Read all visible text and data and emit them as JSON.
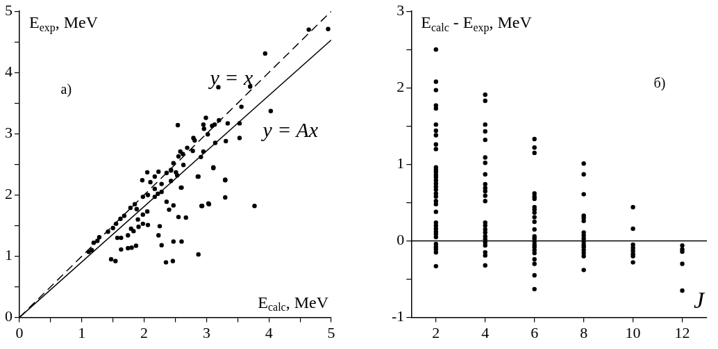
{
  "chart_data": [
    {
      "type": "scatter",
      "xlabel": "E$_{calc}$, MeV",
      "ylabel": "E$_{exp}$, MeV",
      "xlim": [
        0,
        5
      ],
      "ylim": [
        0,
        5
      ],
      "xticks": [
        0,
        {
          "value": 0.5,
          "label": null
        },
        1,
        {
          "value": 1.5,
          "label": null
        },
        2,
        {
          "value": 2.5,
          "label": null
        },
        3,
        {
          "value": 3.5,
          "label": null
        },
        4,
        {
          "value": 4.5,
          "label": null
        },
        5
      ],
      "yticks": [
        0,
        {
          "value": 0.5,
          "label": null
        },
        1,
        {
          "value": 1.5,
          "label": null
        },
        2,
        {
          "value": 2.5,
          "label": null
        },
        3,
        {
          "value": 3.5,
          "label": null
        },
        4,
        {
          "value": 4.5,
          "label": null
        },
        5
      ],
      "grid": false,
      "legend": false,
      "series": [
        {
          "marker": "circle",
          "color": "#000000",
          "x": [
            1.47,
            1.54,
            2.35,
            2.46,
            2.87,
            1.63,
            1.74,
            1.8,
            1.87,
            1.57,
            1.63,
            1.74,
            2.23,
            2.28,
            2.47,
            2.6,
            2.25,
            1.79,
            1.83,
            1.91,
            1.98,
            2.06,
            1.9,
            1.98,
            2.05,
            2.36,
            2.4,
            2.47,
            2.55,
            2.67,
            2.92,
            3.04,
            3.3,
            2.87,
            3.11,
            3.3,
            2.6,
            1.11,
            1.16,
            1.19,
            1.25,
            1.28,
            1.42,
            1.5,
            1.55,
            1.62,
            1.68,
            1.78,
            1.85,
            1.88,
            1.98,
            2.06,
            2.17,
            2.22,
            2.28,
            2.17,
            2.28,
            2.17,
            2.1,
            1.97,
            2.05,
            2.23,
            2.36,
            2.43,
            2.51,
            2.43,
            2.53,
            2.63,
            4.64,
            4.95,
            3.94,
            3.19,
            3.7,
            3.56,
            4.03,
            2.99,
            3.2,
            3.34,
            3.53,
            2.54,
            2.95,
            2.96,
            3.02,
            3.09,
            3.13,
            2.79,
            2.81,
            3.31,
            3.53,
            3.14,
            2.78,
            2.69,
            2.62,
            2.91,
            2.95,
            3.11,
            2.86,
            3.3,
            2.59,
            3.77,
            3.03,
            2.93,
            2.47,
            2.55,
            2.58,
            2.43
          ],
          "values": [
            0.95,
            0.92,
            0.9,
            0.92,
            1.03,
            1.11,
            1.13,
            1.14,
            1.17,
            1.3,
            1.3,
            1.34,
            1.34,
            1.18,
            1.24,
            1.24,
            1.49,
            1.45,
            1.41,
            1.48,
            1.53,
            1.51,
            1.6,
            1.68,
            1.73,
            1.89,
            1.76,
            1.83,
            1.64,
            1.63,
            1.82,
            1.85,
            1.96,
            2.3,
            2.45,
            2.24,
            2.12,
            1.07,
            1.1,
            1.22,
            1.25,
            1.31,
            1.4,
            1.46,
            1.53,
            1.61,
            1.66,
            1.79,
            1.85,
            1.77,
            1.97,
            2.0,
            1.97,
            2.02,
            2.05,
            2.1,
            2.18,
            2.3,
            2.21,
            2.24,
            2.37,
            2.38,
            2.36,
            2.4,
            2.37,
            2.23,
            2.32,
            2.49,
            4.7,
            4.71,
            4.31,
            3.76,
            3.77,
            3.44,
            3.37,
            3.26,
            3.22,
            3.17,
            3.17,
            3.14,
            3.15,
            3.08,
            2.99,
            3.13,
            3.15,
            2.93,
            2.89,
            2.88,
            2.93,
            2.85,
            2.72,
            2.77,
            2.67,
            2.62,
            2.71,
            2.44,
            2.3,
            2.25,
            2.12,
            1.82,
            1.86,
            1.82,
            2.52,
            2.63,
            2.71,
            2.41
          ]
        },
        {
          "type": "line",
          "marker": "none",
          "color": "#000000",
          "line_style": "dashed",
          "x": [
            0,
            5
          ],
          "values": [
            0,
            5
          ]
        },
        {
          "type": "line",
          "marker": "none",
          "color": "#000000",
          "line_style": "solid",
          "x": [
            0,
            5
          ],
          "values": [
            0,
            4.53
          ]
        }
      ],
      "annotations": [
        "y = x",
        "y = Ax",
        "а)"
      ]
    },
    {
      "type": "scatter",
      "xlabel": "J",
      "ylabel": "E$_{calc}$ - E$_{exp}$, MeV",
      "xlim": [
        1,
        13
      ],
      "ylim": [
        -1,
        3
      ],
      "xticks": [
        2,
        4,
        6,
        8,
        10,
        12
      ],
      "yticks": [
        -1,
        {
          "value": -0.5,
          "label": null
        },
        0,
        {
          "value": 0.5,
          "label": null
        },
        1,
        {
          "value": 1.5,
          "label": null
        },
        2,
        {
          "value": 2.5,
          "label": null
        },
        3
      ],
      "grid": false,
      "legend": false,
      "ref_lines": [
        {
          "axis": "y",
          "value": 0,
          "color": "#000000"
        }
      ],
      "series": [
        {
          "marker": "circle",
          "color": "#000000",
          "x": [
            2,
            2,
            2,
            2,
            2,
            2,
            2,
            2,
            2,
            2,
            2,
            2,
            2,
            2,
            2,
            2,
            2,
            2,
            2,
            2,
            2,
            2,
            2,
            2,
            2,
            2,
            2,
            2,
            2,
            2,
            2,
            2,
            2,
            2,
            2,
            4,
            4,
            4,
            4,
            4,
            4,
            4,
            4,
            4,
            4,
            4,
            4,
            4,
            4,
            4,
            4,
            4,
            4,
            4,
            4,
            4,
            4,
            4,
            4,
            6,
            6,
            6,
            6,
            6,
            6,
            6,
            6,
            6,
            6,
            6,
            6,
            6,
            6,
            6,
            6,
            6,
            6,
            6,
            6,
            6,
            6,
            6,
            8,
            8,
            8,
            8,
            8,
            8,
            8,
            8,
            8,
            8,
            8,
            8,
            8,
            8,
            8,
            8,
            10,
            10,
            10,
            10,
            10,
            10,
            10,
            10,
            12,
            12,
            12,
            12,
            12
          ],
          "values": [
            2.5,
            2.08,
            1.97,
            1.77,
            1.73,
            1.52,
            1.44,
            1.38,
            1.26,
            1.2,
            0.96,
            0.93,
            0.9,
            0.86,
            0.83,
            0.79,
            0.75,
            0.71,
            0.67,
            0.62,
            0.58,
            0.52,
            0.48,
            0.38,
            0.24,
            0.2,
            0.16,
            0.12,
            0.09,
            0.05,
            -0.04,
            -0.08,
            -0.11,
            -0.15,
            -0.33,
            1.91,
            1.83,
            1.52,
            1.43,
            1.32,
            1.09,
            1.02,
            0.87,
            0.74,
            0.69,
            0.65,
            0.59,
            0.52,
            0.24,
            0.2,
            0.15,
            0.11,
            0.06,
            0.02,
            -0.02,
            -0.06,
            -0.15,
            -0.19,
            -0.32,
            1.33,
            1.22,
            1.15,
            0.62,
            0.58,
            0.55,
            0.44,
            0.41,
            0.37,
            0.31,
            0.25,
            0.15,
            0.06,
            0.03,
            -0.01,
            -0.05,
            -0.08,
            -0.12,
            -0.16,
            -0.24,
            -0.3,
            -0.45,
            -0.63,
            1.01,
            0.87,
            0.61,
            0.33,
            0.3,
            0.26,
            0.11,
            0.07,
            0.03,
            -0.01,
            -0.05,
            -0.08,
            -0.12,
            -0.16,
            -0.2,
            -0.38,
            0.44,
            0.16,
            -0.05,
            -0.09,
            -0.13,
            -0.17,
            -0.2,
            -0.28,
            -0.06,
            -0.11,
            -0.14,
            -0.3,
            -0.65
          ]
        }
      ],
      "annotations": [
        "б)"
      ]
    }
  ]
}
